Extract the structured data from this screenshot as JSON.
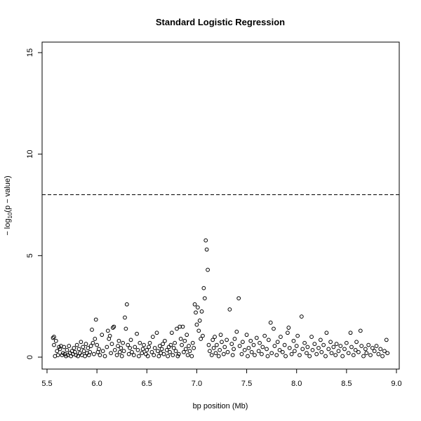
{
  "chart_data": {
    "type": "scatter",
    "title": "Standard Logistic Regression",
    "xlabel": "bp position (Mb)",
    "ylabel": {
      "prefix": "− log",
      "sub": "10",
      "suffix": "(p − value)"
    },
    "xlim": [
      5.5,
      9.0
    ],
    "ylim": [
      0,
      15
    ],
    "xticks": [
      "5.5",
      "6.0",
      "6.5",
      "7.0",
      "7.5",
      "8.0",
      "8.5",
      "9.0"
    ],
    "yticks": [
      "0",
      "5",
      "10",
      "15"
    ],
    "threshold": {
      "y": 8,
      "style": "dashed"
    },
    "grid": false,
    "marker": "open-circle",
    "points": [
      [
        5.56,
        0.95
      ],
      [
        5.57,
        1.0
      ],
      [
        5.57,
        0.6
      ],
      [
        5.58,
        0.05
      ],
      [
        5.59,
        0.8
      ],
      [
        5.6,
        0.3
      ],
      [
        5.61,
        0.1
      ],
      [
        5.62,
        0.5
      ],
      [
        5.63,
        0.4
      ],
      [
        5.64,
        0.55
      ],
      [
        5.65,
        0.1
      ],
      [
        5.66,
        0.2
      ],
      [
        5.67,
        0.5
      ],
      [
        5.68,
        0.15
      ],
      [
        5.69,
        0.05
      ],
      [
        5.7,
        0.35
      ],
      [
        5.71,
        0.1
      ],
      [
        5.72,
        0.55
      ],
      [
        5.73,
        0.2
      ],
      [
        5.74,
        0.05
      ],
      [
        5.75,
        0.3
      ],
      [
        5.76,
        0.15
      ],
      [
        5.77,
        0.45
      ],
      [
        5.78,
        0.25
      ],
      [
        5.79,
        0.1
      ],
      [
        5.8,
        0.6
      ],
      [
        5.81,
        0.05
      ],
      [
        5.82,
        0.4
      ],
      [
        5.83,
        0.2
      ],
      [
        5.84,
        0.75
      ],
      [
        5.85,
        0.1
      ],
      [
        5.86,
        0.5
      ],
      [
        5.87,
        0.3
      ],
      [
        5.88,
        0.05
      ],
      [
        5.89,
        0.65
      ],
      [
        5.9,
        0.2
      ],
      [
        5.91,
        0.45
      ],
      [
        5.92,
        0.1
      ],
      [
        5.93,
        0.25
      ],
      [
        5.94,
        0.55
      ],
      [
        5.95,
        1.35
      ],
      [
        5.96,
        0.7
      ],
      [
        5.97,
        0.15
      ],
      [
        5.98,
        0.9
      ],
      [
        5.99,
        1.85
      ],
      [
        6.0,
        0.6
      ],
      [
        6.01,
        0.25
      ],
      [
        6.02,
        0.4
      ],
      [
        6.03,
        0.1
      ],
      [
        6.05,
        1.1
      ],
      [
        6.06,
        0.3
      ],
      [
        6.08,
        0.05
      ],
      [
        6.1,
        0.5
      ],
      [
        6.11,
        1.3
      ],
      [
        6.12,
        0.9
      ],
      [
        6.13,
        1.05
      ],
      [
        6.14,
        0.2
      ],
      [
        6.15,
        0.65
      ],
      [
        6.16,
        1.45
      ],
      [
        6.17,
        1.5
      ],
      [
        6.18,
        0.35
      ],
      [
        6.2,
        0.1
      ],
      [
        6.21,
        0.55
      ],
      [
        6.22,
        0.8
      ],
      [
        6.23,
        0.25
      ],
      [
        6.24,
        0.45
      ],
      [
        6.25,
        0.05
      ],
      [
        6.26,
        0.7
      ],
      [
        6.27,
        0.3
      ],
      [
        6.28,
        1.95
      ],
      [
        6.29,
        1.4
      ],
      [
        6.3,
        2.6
      ],
      [
        6.31,
        0.6
      ],
      [
        6.32,
        0.15
      ],
      [
        6.33,
        0.45
      ],
      [
        6.34,
        0.85
      ],
      [
        6.35,
        0.25
      ],
      [
        6.37,
        0.1
      ],
      [
        6.38,
        0.5
      ],
      [
        6.4,
        1.15
      ],
      [
        6.41,
        0.35
      ],
      [
        6.42,
        0.05
      ],
      [
        6.43,
        0.7
      ],
      [
        6.45,
        0.2
      ],
      [
        6.46,
        0.4
      ],
      [
        6.47,
        0.6
      ],
      [
        6.49,
        0.15
      ],
      [
        6.5,
        0.35
      ],
      [
        6.51,
        0.05
      ],
      [
        6.52,
        0.5
      ],
      [
        6.53,
        0.7
      ],
      [
        6.55,
        0.25
      ],
      [
        6.56,
        1.0
      ],
      [
        6.57,
        0.1
      ],
      [
        6.58,
        0.45
      ],
      [
        6.6,
        1.2
      ],
      [
        6.61,
        0.3
      ],
      [
        6.62,
        0.05
      ],
      [
        6.63,
        0.55
      ],
      [
        6.64,
        0.2
      ],
      [
        6.65,
        0.4
      ],
      [
        6.66,
        0.65
      ],
      [
        6.67,
        0.15
      ],
      [
        6.68,
        0.8
      ],
      [
        6.7,
        0.35
      ],
      [
        6.71,
        0.05
      ],
      [
        6.72,
        0.5
      ],
      [
        6.73,
        0.25
      ],
      [
        6.74,
        0.6
      ],
      [
        6.75,
        1.2
      ],
      [
        6.76,
        0.1
      ],
      [
        6.77,
        0.45
      ],
      [
        6.78,
        0.7
      ],
      [
        6.79,
        0.3
      ],
      [
        6.8,
        1.4
      ],
      [
        6.81,
        0.05
      ],
      [
        6.82,
        0.15
      ],
      [
        6.83,
        1.5
      ],
      [
        6.84,
        0.9
      ],
      [
        6.85,
        0.6
      ],
      [
        6.86,
        1.5
      ],
      [
        6.87,
        0.25
      ],
      [
        6.88,
        0.8
      ],
      [
        6.89,
        0.4
      ],
      [
        6.9,
        1.1
      ],
      [
        6.91,
        0.1
      ],
      [
        6.92,
        0.55
      ],
      [
        6.93,
        0.3
      ],
      [
        6.95,
        0.05
      ],
      [
        6.96,
        0.7
      ],
      [
        6.97,
        0.45
      ],
      [
        6.98,
        2.6
      ],
      [
        6.99,
        2.2
      ],
      [
        7.0,
        1.6
      ],
      [
        7.01,
        2.45
      ],
      [
        7.02,
        1.3
      ],
      [
        7.03,
        1.8
      ],
      [
        7.04,
        0.9
      ],
      [
        7.05,
        2.25
      ],
      [
        7.06,
        1.05
      ],
      [
        7.07,
        3.4
      ],
      [
        7.08,
        2.9
      ],
      [
        7.09,
        5.75
      ],
      [
        7.1,
        5.3
      ],
      [
        7.11,
        4.3
      ],
      [
        7.12,
        0.6
      ],
      [
        7.13,
        0.3
      ],
      [
        7.15,
        0.1
      ],
      [
        7.16,
        0.85
      ],
      [
        7.17,
        0.45
      ],
      [
        7.18,
        1.0
      ],
      [
        7.19,
        0.2
      ],
      [
        7.2,
        0.6
      ],
      [
        7.22,
        0.05
      ],
      [
        7.23,
        0.35
      ],
      [
        7.24,
        1.1
      ],
      [
        7.25,
        0.75
      ],
      [
        7.27,
        0.15
      ],
      [
        7.28,
        0.5
      ],
      [
        7.3,
        0.85
      ],
      [
        7.31,
        0.25
      ],
      [
        7.33,
        2.35
      ],
      [
        7.35,
        0.65
      ],
      [
        7.36,
        0.1
      ],
      [
        7.37,
        0.4
      ],
      [
        7.38,
        0.9
      ],
      [
        7.4,
        1.25
      ],
      [
        7.42,
        2.9
      ],
      [
        7.43,
        0.55
      ],
      [
        7.45,
        0.15
      ],
      [
        7.46,
        0.75
      ],
      [
        7.48,
        0.35
      ],
      [
        7.5,
        1.1
      ],
      [
        7.51,
        0.05
      ],
      [
        7.52,
        0.45
      ],
      [
        7.54,
        0.8
      ],
      [
        7.55,
        0.25
      ],
      [
        7.57,
        0.6
      ],
      [
        7.58,
        0.1
      ],
      [
        7.6,
        0.95
      ],
      [
        7.62,
        0.3
      ],
      [
        7.63,
        0.7
      ],
      [
        7.65,
        0.15
      ],
      [
        7.66,
        0.5
      ],
      [
        7.68,
        1.05
      ],
      [
        7.7,
        0.4
      ],
      [
        7.71,
        0.05
      ],
      [
        7.72,
        0.85
      ],
      [
        7.74,
        1.7
      ],
      [
        7.75,
        0.2
      ],
      [
        7.77,
        1.4
      ],
      [
        7.78,
        0.55
      ],
      [
        7.8,
        0.1
      ],
      [
        7.81,
        0.75
      ],
      [
        7.83,
        0.35
      ],
      [
        7.84,
        1.0
      ],
      [
        7.86,
        0.25
      ],
      [
        7.88,
        0.6
      ],
      [
        7.89,
        0.05
      ],
      [
        7.91,
        1.2
      ],
      [
        7.92,
        1.45
      ],
      [
        7.93,
        0.45
      ],
      [
        7.95,
        0.15
      ],
      [
        7.97,
        0.8
      ],
      [
        7.98,
        0.3
      ],
      [
        8.0,
        0.55
      ],
      [
        8.01,
        1.05
      ],
      [
        8.03,
        0.1
      ],
      [
        8.05,
        2.0
      ],
      [
        8.06,
        0.4
      ],
      [
        8.08,
        0.7
      ],
      [
        8.1,
        0.2
      ],
      [
        8.11,
        0.5
      ],
      [
        8.13,
        0.05
      ],
      [
        8.15,
        1.0
      ],
      [
        8.16,
        0.35
      ],
      [
        8.18,
        0.65
      ],
      [
        8.2,
        0.15
      ],
      [
        8.22,
        0.45
      ],
      [
        8.24,
        0.85
      ],
      [
        8.25,
        0.25
      ],
      [
        8.27,
        0.6
      ],
      [
        8.29,
        0.05
      ],
      [
        8.3,
        1.2
      ],
      [
        8.32,
        0.4
      ],
      [
        8.34,
        0.75
      ],
      [
        8.35,
        0.2
      ],
      [
        8.37,
        0.5
      ],
      [
        8.39,
        0.1
      ],
      [
        8.4,
        0.65
      ],
      [
        8.42,
        0.3
      ],
      [
        8.44,
        0.55
      ],
      [
        8.46,
        0.05
      ],
      [
        8.48,
        0.4
      ],
      [
        8.5,
        0.7
      ],
      [
        8.52,
        0.2
      ],
      [
        8.54,
        1.2
      ],
      [
        8.55,
        0.5
      ],
      [
        8.57,
        0.1
      ],
      [
        8.59,
        0.35
      ],
      [
        8.6,
        0.75
      ],
      [
        8.62,
        0.25
      ],
      [
        8.64,
        1.3
      ],
      [
        8.65,
        0.55
      ],
      [
        8.67,
        0.05
      ],
      [
        8.69,
        0.4
      ],
      [
        8.7,
        0.2
      ],
      [
        8.72,
        0.6
      ],
      [
        8.74,
        0.1
      ],
      [
        8.76,
        0.45
      ],
      [
        8.78,
        0.3
      ],
      [
        8.8,
        0.55
      ],
      [
        8.82,
        0.15
      ],
      [
        8.84,
        0.4
      ],
      [
        8.86,
        0.05
      ],
      [
        8.88,
        0.3
      ],
      [
        8.9,
        0.85
      ],
      [
        8.91,
        0.2
      ]
    ]
  }
}
